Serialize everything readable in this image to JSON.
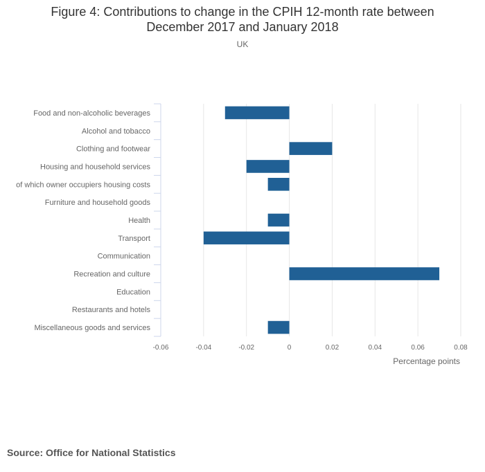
{
  "header": {
    "title_line1": "Figure 4: Contributions to change in the CPIH 12-month rate between",
    "title_line2": "December 2017 and January 2018",
    "subtitle": "UK"
  },
  "footer": {
    "source": "Source: Office for National Statistics"
  },
  "colors": {
    "bar": "#206095",
    "grid": "#e6e6e6",
    "axis": "#ccd6eb",
    "tick_text": "#666666"
  },
  "chart_data": {
    "type": "bar",
    "orientation": "horizontal",
    "title": "Figure 4: Contributions to change in the CPIH 12-month rate between December 2017 and January 2018",
    "subtitle": "UK",
    "xlabel": "Percentage points",
    "ylabel": "",
    "xlim": [
      -0.06,
      0.08
    ],
    "xticks": [
      -0.06,
      -0.04,
      -0.02,
      0,
      0.02,
      0.04,
      0.06,
      0.08
    ],
    "xtick_labels": [
      "-0.06",
      "-0.04",
      "-0.02",
      "0",
      "0.02",
      "0.04",
      "0.06",
      "0.08"
    ],
    "grid": true,
    "categories": [
      "Food and non-alcoholic beverages",
      "Alcohol and tobacco",
      "Clothing and footwear",
      "Housing and household services",
      "of which owner occupiers housing costs",
      "Furniture and household goods",
      "Health",
      "Transport",
      "Communication",
      "Recreation and culture",
      "Education",
      "Restaurants and hotels",
      "Miscellaneous goods and services"
    ],
    "values": [
      -0.03,
      0,
      0.02,
      -0.02,
      -0.01,
      0,
      -0.01,
      -0.04,
      0,
      0.07,
      0,
      0,
      -0.01
    ]
  }
}
